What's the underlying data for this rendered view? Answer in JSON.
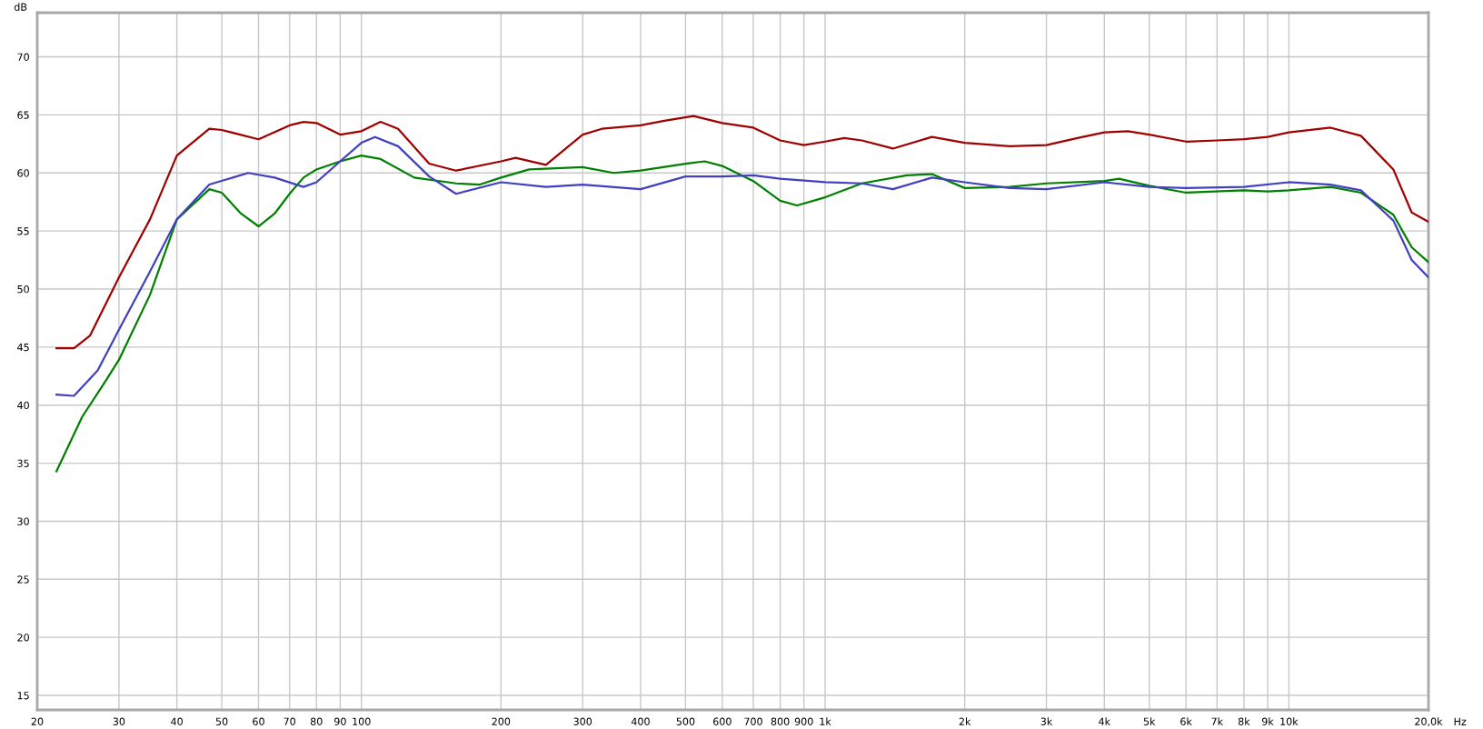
{
  "chart_data": {
    "type": "line",
    "ylabel": "dB",
    "xlabel": "Hz",
    "log": "x",
    "grid": true,
    "legend": false,
    "marker": "none",
    "line_style": "solid",
    "xlim": [
      20,
      20000
    ],
    "ylim": [
      13.75,
      73.8
    ],
    "xticks": [
      20,
      30,
      40,
      50,
      60,
      70,
      80,
      90,
      100,
      200,
      300,
      400,
      500,
      600,
      700,
      800,
      900,
      {
        "value": 1000,
        "label": "1k"
      },
      {
        "value": 2000,
        "label": "2k"
      },
      {
        "value": 3000,
        "label": "3k"
      },
      {
        "value": 4000,
        "label": "4k"
      },
      {
        "value": 5000,
        "label": "5k"
      },
      {
        "value": 6000,
        "label": "6k"
      },
      {
        "value": 7000,
        "label": "7k"
      },
      {
        "value": 8000,
        "label": "8k"
      },
      {
        "value": 9000,
        "label": "9k"
      },
      {
        "value": 10000,
        "label": "10k"
      },
      {
        "value": 20000,
        "label": "20,0k"
      }
    ],
    "yticks": [
      15,
      20,
      25,
      30,
      35,
      40,
      45,
      50,
      55,
      60,
      65,
      70
    ],
    "series": [
      {
        "color": "#a00000",
        "x": [
          22,
          24,
          26,
          30,
          35,
          40,
          47,
          50,
          60,
          70,
          75,
          80,
          90,
          100,
          110,
          120,
          140,
          160,
          200,
          215,
          250,
          300,
          330,
          400,
          450,
          520,
          600,
          700,
          800,
          900,
          1000,
          1100,
          1200,
          1400,
          1700,
          2000,
          2500,
          3000,
          3500,
          4000,
          4500,
          5000,
          6000,
          7000,
          8000,
          9000,
          10000,
          12300,
          14300,
          16800,
          18400,
          20000
        ],
        "values": [
          44.9,
          44.9,
          46.0,
          51.0,
          56.0,
          61.5,
          63.8,
          63.7,
          62.9,
          64.1,
          64.4,
          64.3,
          63.3,
          63.6,
          64.4,
          63.8,
          60.8,
          60.2,
          61.0,
          61.3,
          60.7,
          63.3,
          63.8,
          64.1,
          64.5,
          64.9,
          64.3,
          63.9,
          62.8,
          62.4,
          62.7,
          63.0,
          62.8,
          62.1,
          63.1,
          62.6,
          62.3,
          62.4,
          63.0,
          63.5,
          63.6,
          63.3,
          62.7,
          62.8,
          62.9,
          63.1,
          63.5,
          63.9,
          63.2,
          60.3,
          56.6,
          55.8
        ]
      },
      {
        "color": "#008000",
        "x": [
          22,
          25,
          28,
          30,
          35,
          40,
          47,
          50,
          55,
          60,
          65,
          70,
          75,
          80,
          90,
          100,
          110,
          130,
          160,
          180,
          200,
          230,
          300,
          350,
          400,
          500,
          550,
          600,
          700,
          800,
          870,
          1000,
          1200,
          1500,
          1700,
          2000,
          2500,
          3000,
          4000,
          4300,
          5000,
          6000,
          8000,
          9000,
          10000,
          12300,
          14300,
          16800,
          18400,
          20000
        ],
        "values": [
          34.3,
          39.0,
          42.0,
          43.9,
          49.5,
          56.0,
          58.6,
          58.3,
          56.5,
          55.4,
          56.5,
          58.2,
          59.6,
          60.3,
          61.0,
          61.5,
          61.2,
          59.6,
          59.1,
          59.0,
          59.6,
          60.3,
          60.5,
          60.0,
          60.2,
          60.8,
          61.0,
          60.6,
          59.3,
          57.6,
          57.2,
          57.9,
          59.1,
          59.8,
          59.9,
          58.7,
          58.8,
          59.1,
          59.3,
          59.5,
          58.9,
          58.3,
          58.5,
          58.4,
          58.5,
          58.8,
          58.3,
          56.4,
          53.6,
          52.3
        ]
      },
      {
        "color": "#4040c0",
        "x": [
          22,
          24,
          27,
          30,
          35,
          40,
          47,
          57,
          65,
          75,
          80,
          90,
          100,
          107,
          120,
          140,
          160,
          200,
          250,
          300,
          400,
          500,
          600,
          700,
          800,
          1000,
          1200,
          1400,
          1700,
          2000,
          2500,
          3000,
          4000,
          5000,
          6000,
          8000,
          10000,
          12300,
          14300,
          16800,
          18400,
          20000
        ],
        "values": [
          40.9,
          40.8,
          43.0,
          46.5,
          51.5,
          56.0,
          59.0,
          60.0,
          59.6,
          58.8,
          59.2,
          61.0,
          62.6,
          63.1,
          62.3,
          59.7,
          58.2,
          59.2,
          58.8,
          59.0,
          58.6,
          59.7,
          59.7,
          59.8,
          59.5,
          59.2,
          59.1,
          58.6,
          59.6,
          59.2,
          58.7,
          58.6,
          59.2,
          58.8,
          58.7,
          58.8,
          59.2,
          59.0,
          58.5,
          55.9,
          52.5,
          51.0
        ]
      }
    ]
  }
}
